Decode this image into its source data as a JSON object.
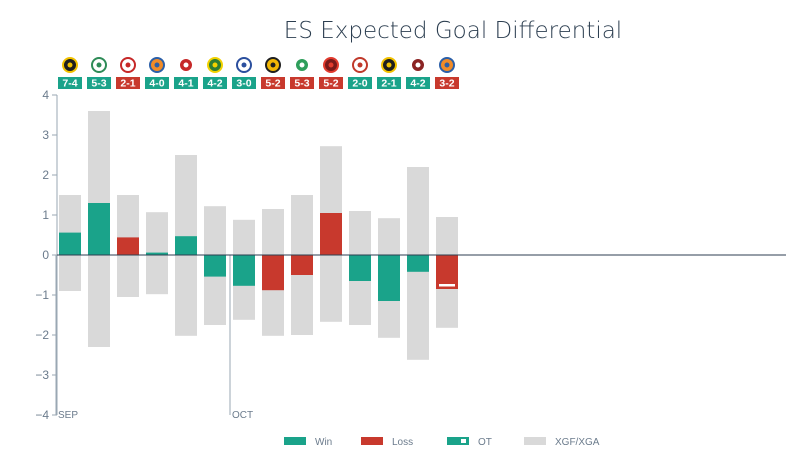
{
  "chart_data": {
    "type": "bar",
    "title": "ES Expected Goal Differential",
    "ylim": [
      -4,
      4
    ],
    "yticks": [
      -4,
      -3,
      -2,
      -1,
      0,
      1,
      2,
      3,
      4
    ],
    "month_markers": [
      {
        "label": "SEP",
        "game_index": 0
      },
      {
        "label": "OCT",
        "game_index": 6
      }
    ],
    "games": [
      {
        "logo_icon": "yellow-black-crest-icon",
        "score": "7-4",
        "result": "win",
        "xgf": 1.5,
        "xga": -0.9,
        "xgd": 0.56
      },
      {
        "logo_icon": "green-text-logo-icon",
        "score": "5-3",
        "result": "win",
        "xgf": 3.6,
        "xga": -2.3,
        "xgd": 1.3
      },
      {
        "logo_icon": "red-white-crest-icon",
        "score": "2-1",
        "result": "loss",
        "xgf": 1.5,
        "xga": -1.05,
        "xgd": 0.44
      },
      {
        "logo_icon": "blue-orange-logo-icon",
        "score": "4-0",
        "result": "win",
        "xgf": 1.07,
        "xga": -0.98,
        "xgd": 0.06
      },
      {
        "logo_icon": "red-tower-crest-icon",
        "score": "4-1",
        "result": "win",
        "xgf": 2.5,
        "xga": -2.02,
        "xgd": 0.47
      },
      {
        "logo_icon": "green-yellow-shield-icon",
        "score": "4-2",
        "result": "win",
        "xgf": 1.22,
        "xga": -1.75,
        "xgd": -0.54
      },
      {
        "logo_icon": "blue-round-crest-icon",
        "score": "3-0",
        "result": "win",
        "xgf": 0.88,
        "xga": -1.62,
        "xgd": -0.77
      },
      {
        "logo_icon": "yellow-lion-icon",
        "score": "5-2",
        "result": "loss",
        "xgf": 1.15,
        "xga": -2.02,
        "xgd": -0.88
      },
      {
        "logo_icon": "green-white-crest-icon",
        "score": "5-3",
        "result": "loss",
        "xgf": 1.5,
        "xga": -2.0,
        "xgd": -0.5
      },
      {
        "logo_icon": "red-black-ball-icon",
        "score": "5-2",
        "result": "loss",
        "xgf": 2.72,
        "xga": -1.67,
        "xgd": 1.05
      },
      {
        "logo_icon": "red-blue-crest-icon",
        "score": "2-0",
        "result": "win",
        "xgf": 1.1,
        "xga": -1.75,
        "xgd": -0.65
      },
      {
        "logo_icon": "yellow-black-crest-icon",
        "score": "2-1",
        "result": "win",
        "xgf": 0.92,
        "xga": -2.07,
        "xgd": -1.15
      },
      {
        "logo_icon": "red-bird-crest-icon",
        "score": "4-2",
        "result": "win",
        "xgf": 2.2,
        "xga": -2.62,
        "xgd": -0.42
      },
      {
        "logo_icon": "blue-orange-logo-icon",
        "score": "3-2",
        "result": "ot",
        "xgf": 0.95,
        "xga": -1.82,
        "xgd": -0.85
      }
    ],
    "legend": [
      {
        "key": "win",
        "label": "Win"
      },
      {
        "key": "loss",
        "label": "Loss"
      },
      {
        "key": "ot",
        "label": "OT"
      },
      {
        "key": "xg",
        "label": "XGF/XGA"
      }
    ]
  },
  "colors": {
    "win": "#1aa38a",
    "loss": "#c8392d",
    "xg": "#d9d9d9",
    "axis": "#2c3e50",
    "tick_text": "#6b7b8c"
  }
}
